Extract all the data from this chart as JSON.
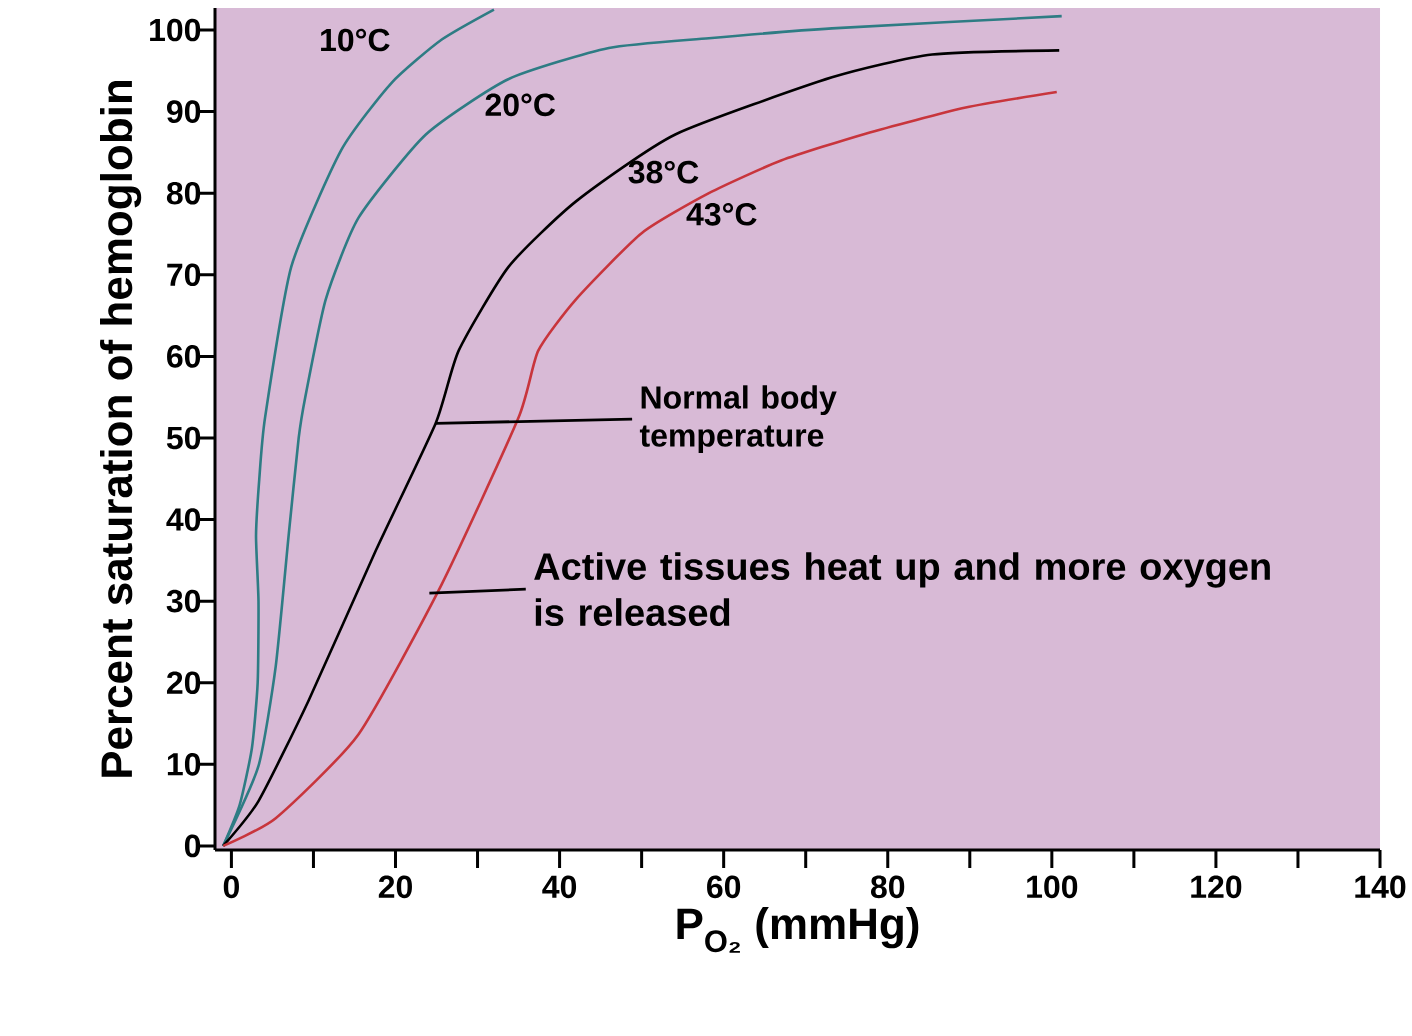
{
  "chart_data": {
    "type": "line",
    "xlabel": "P$_{O₂}$ (mmHg)",
    "ylabel": "Percent saturation of hemoglobin",
    "xlim": [
      -2,
      140
    ],
    "ylim": [
      -0.5,
      102.7
    ],
    "xticks": [
      0,
      20,
      40,
      60,
      80,
      100,
      120,
      140
    ],
    "yticks": [
      0,
      10,
      20,
      30,
      40,
      50,
      60,
      70,
      80,
      90,
      100
    ],
    "grid": false,
    "marker": "none",
    "series": [
      {
        "name": "10°C",
        "color": "#2e7c84",
        "x": [
          -1,
          1,
          2.5,
          3.2,
          3.3,
          3.0,
          3.4,
          4.1,
          7.3,
          13.4,
          19.5,
          25.6,
          32
        ],
        "values": [
          0,
          5,
          12,
          20,
          30,
          38,
          45,
          52.5,
          71,
          85.3,
          93.5,
          98.8,
          102.5
        ]
      },
      {
        "name": "20°C",
        "color": "#2e7c84",
        "x": [
          -1,
          3.3,
          5.4,
          7,
          8.2,
          9,
          11.5,
          15.5,
          23.7,
          33.8,
          46,
          58.2,
          73.2,
          101.2
        ],
        "values": [
          0,
          9.8,
          22,
          38.3,
          50,
          55,
          67,
          77,
          87.2,
          94,
          97.8,
          99,
          100.2,
          101.7
        ]
      },
      {
        "name": "38°C",
        "color": "#000000",
        "x": [
          -1,
          3.3,
          9.4,
          17.6,
          24.9,
          27.7,
          33.8,
          42,
          54.1,
          73.2,
          85.4,
          100.9
        ],
        "values": [
          0,
          5.5,
          17.8,
          36.2,
          51.8,
          60.7,
          71,
          79,
          87.2,
          94.2,
          97,
          97.5
        ]
      },
      {
        "name": "43°C",
        "color": "#c8353c",
        "x": [
          -1,
          5.4,
          15.5,
          25.6,
          35,
          37.4,
          42,
          50,
          58.2,
          67,
          77.3,
          89.5,
          100.6
        ],
        "values": [
          0,
          3.4,
          13.7,
          32,
          52.5,
          60.7,
          67,
          75.1,
          80,
          84,
          87.3,
          90.5,
          92.4
        ]
      }
    ],
    "annotations": [
      {
        "text": "Normal body temperature",
        "x": 24.9,
        "y": 51.8
      },
      "Active tissues heat up and more oxygen is released"
    ]
  }
}
